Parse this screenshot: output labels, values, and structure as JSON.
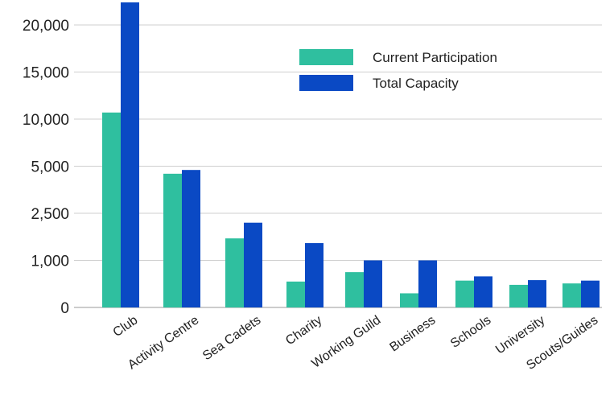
{
  "chart_data": {
    "type": "bar",
    "title": "",
    "xlabel": "",
    "ylabel": "",
    "y_scale": "non-linear (ticks equally spaced)",
    "y_ticks": [
      0,
      1000,
      2500,
      5000,
      10000,
      15000,
      20000
    ],
    "y_tick_labels": [
      "0",
      "1,000",
      "2,500",
      "5,000",
      "10,000",
      "15,000",
      "20,000"
    ],
    "grid": true,
    "legend_position": "top-right",
    "categories": [
      "Club",
      "Activity Centre",
      "Sea Cadets",
      "Charity",
      "Working Guild",
      "Business",
      "Schools",
      "University",
      "Scouts/Guides"
    ],
    "series": [
      {
        "name": "Current Participation",
        "color": "#2fbf9f",
        "values": [
          10700,
          4600,
          1700,
          550,
          750,
          300,
          570,
          480,
          510
        ]
      },
      {
        "name": "Total Capacity",
        "color": "#0a49c4",
        "values": [
          22400,
          4800,
          2200,
          1550,
          1000,
          1000,
          660,
          580,
          570
        ]
      }
    ]
  }
}
